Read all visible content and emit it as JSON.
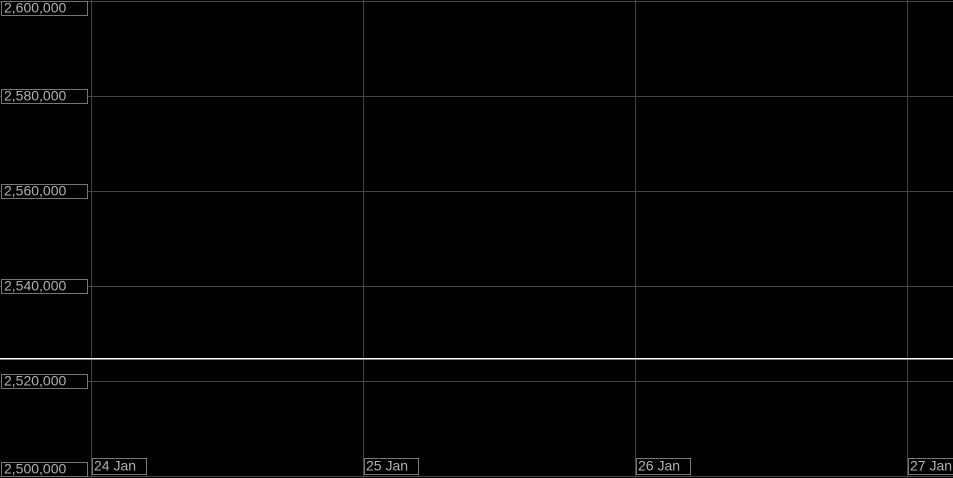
{
  "chart_data": {
    "type": "line",
    "x": [
      23.665,
      27.17
    ],
    "series": [
      {
        "color": "#ffffff",
        "values": [
          2524800,
          2524800
        ]
      }
    ],
    "xlim": [
      23.665,
      27.17
    ],
    "xticks": [
      {
        "value": 24,
        "label": "24 Jan"
      },
      {
        "value": 25,
        "label": "25 Jan"
      },
      {
        "value": 26,
        "label": "26 Jan"
      },
      {
        "value": 27,
        "label": "27 Jan"
      }
    ],
    "ylim": [
      2500000,
      2600000
    ],
    "yticks": [
      {
        "value": 2500000,
        "label": "2,500,000"
      },
      {
        "value": 2520000,
        "label": "2,520,000"
      },
      {
        "value": 2540000,
        "label": "2,540,000"
      },
      {
        "value": 2560000,
        "label": "2,560,000"
      },
      {
        "value": 2580000,
        "label": "2,580,000"
      },
      {
        "value": 2600000,
        "label": "2,600,000"
      }
    ],
    "grid": true
  }
}
